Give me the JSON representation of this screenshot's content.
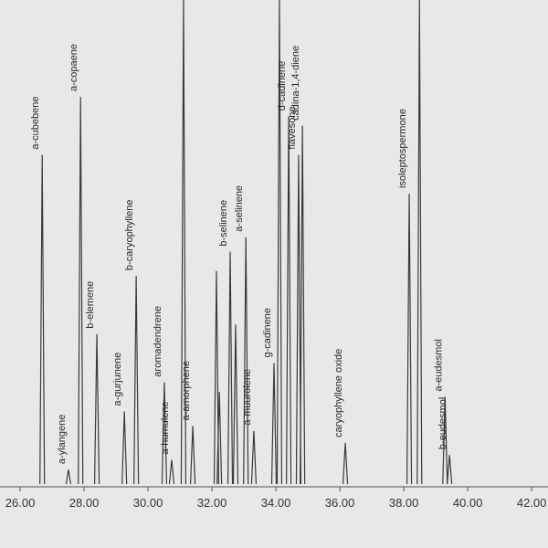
{
  "chart_data": {
    "type": "peak",
    "x": [
      26.69,
      27.51,
      27.89,
      28.4,
      29.26,
      29.63,
      30.51,
      30.74,
      31.11,
      31.4,
      32.14,
      32.23,
      32.57,
      32.74,
      33.06,
      33.31,
      33.94,
      34.11,
      34.4,
      34.71,
      34.83,
      36.17,
      38.17,
      38.49,
      39.29,
      39.43
    ],
    "values": [
      68,
      3,
      80,
      31,
      15,
      43,
      21,
      5,
      100,
      12,
      44,
      19,
      48,
      33,
      51,
      11,
      25,
      100,
      76,
      68,
      74,
      8.5,
      60,
      100,
      18,
      6
    ],
    "labels": [
      "a-cubebene",
      "a-ylangene",
      "a-copaene",
      "b-elemene",
      "a-gurjunene",
      "b-caryophyllene",
      "aromadendrene",
      "a-humulene",
      null,
      "a-amorphene",
      null,
      null,
      "b-selinene",
      null,
      "a-selinene",
      "a-muurolene",
      "g-cadinene",
      null,
      "d-cadinene",
      "flavesone",
      "cadina-1,4-diene",
      "caryophyllene oxide",
      "isoleptospermone",
      null,
      "a-eudesmol",
      "b-eudesmol"
    ],
    "color": "#3a3a3a",
    "xlim": [
      25.37,
      42.51
    ],
    "ylim": [
      0,
      100
    ],
    "xticks": [
      {
        "value": 26,
        "label": "26.00"
      },
      {
        "value": 28,
        "label": "28.00"
      },
      {
        "value": 30,
        "label": "30.00"
      },
      {
        "value": 32,
        "label": "32.00"
      },
      {
        "value": 34,
        "label": "34.00"
      },
      {
        "value": 36,
        "label": "36.00"
      },
      {
        "value": 38,
        "label": "38.00"
      },
      {
        "value": 40,
        "label": "40.00"
      },
      {
        "value": 42,
        "label": "42.00"
      }
    ]
  }
}
